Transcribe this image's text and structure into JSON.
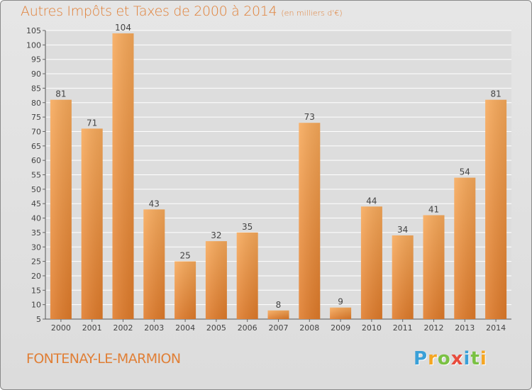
{
  "header": {
    "title": "Autres Impôts et Taxes de 2000 à 2014",
    "subtitle": "(en milliers d'€)"
  },
  "footer": {
    "commune": "FONTENAY-LE-MARMION",
    "logo": "Proxiti"
  },
  "colors": {
    "title": "#e07f36",
    "bar_light": "#f7a95a",
    "bar_dark": "#e07b2a",
    "logo_letters": [
      "#3aa0d8",
      "#f5a623",
      "#7ac143",
      "#e84c3d",
      "#3aa0d8",
      "#7ac143",
      "#f5a623"
    ]
  },
  "chart_data": {
    "type": "bar",
    "categories": [
      "2000",
      "2001",
      "2002",
      "2003",
      "2004",
      "2005",
      "2006",
      "2007",
      "2008",
      "2009",
      "2010",
      "2011",
      "2012",
      "2013",
      "2014"
    ],
    "values": [
      81,
      71,
      104,
      43,
      25,
      32,
      35,
      8,
      73,
      9,
      44,
      34,
      41,
      54,
      81
    ],
    "data_labels": [
      "81",
      "71",
      "104",
      "43",
      "25",
      "32",
      "35",
      "8",
      "73",
      "9",
      "44",
      "34",
      "41",
      "54",
      "81"
    ],
    "ylim": [
      5,
      105
    ],
    "yticks": [
      5,
      10,
      15,
      20,
      25,
      30,
      35,
      40,
      45,
      50,
      55,
      60,
      65,
      70,
      75,
      80,
      85,
      90,
      95,
      100,
      105
    ],
    "grid": true,
    "legend": "none"
  }
}
